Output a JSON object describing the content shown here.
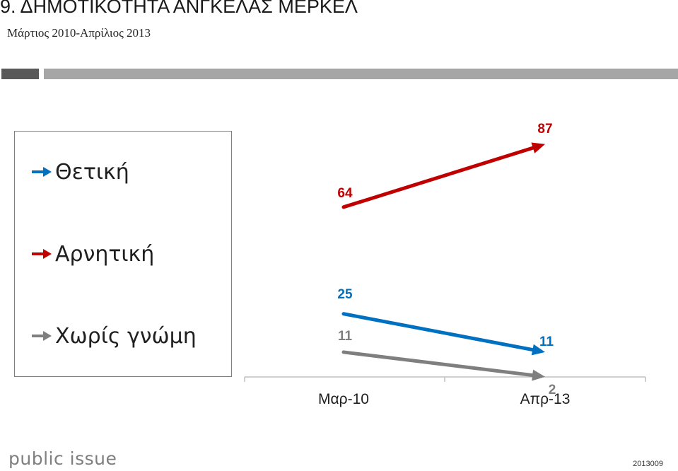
{
  "header": {
    "title": "9. ΔΗΜΟΤΙΚΟΤΗΤΑ ΑΝΓΚΕΛΑΣ ΜΕΡΚΕΛ",
    "subtitle": "Μάρτιος 2010-Απρίλιος 2013"
  },
  "legend": {
    "items": [
      {
        "label": "Θετική",
        "color": "#c00000",
        "arrow_color": "#0070c0"
      },
      {
        "label": "Αρνητική",
        "color": "#0070c0",
        "arrow_color": "#c00000"
      },
      {
        "label": "Χωρίς γνώμη",
        "color": "#7f7f7f",
        "arrow_color": "#7f7f7f"
      }
    ]
  },
  "chart_data": {
    "type": "line",
    "categories": [
      "Μαρ-10",
      "Απρ-13"
    ],
    "series": [
      {
        "name": "Θετική",
        "values": [
          64,
          87
        ],
        "color": "#c00000"
      },
      {
        "name": "Αρνητική",
        "values": [
          25,
          11
        ],
        "color": "#0070c0"
      },
      {
        "name": "Χωρίς γνώμη",
        "values": [
          11,
          2
        ],
        "color": "#7f7f7f"
      }
    ],
    "title": "9. ΔΗΜΟΤΙΚΟΤΗΤΑ ΑΝΓΚΕΛΑΣ ΜΕΡΚΕΛ",
    "subtitle": "Μάρτιος 2010-Απρίλιος 2013",
    "xlabel": "",
    "ylabel": "",
    "ylim": [
      0,
      100
    ],
    "grid": false,
    "legend_placement": "left"
  },
  "footer": {
    "logo_text": "public issue",
    "code": "2013009"
  }
}
